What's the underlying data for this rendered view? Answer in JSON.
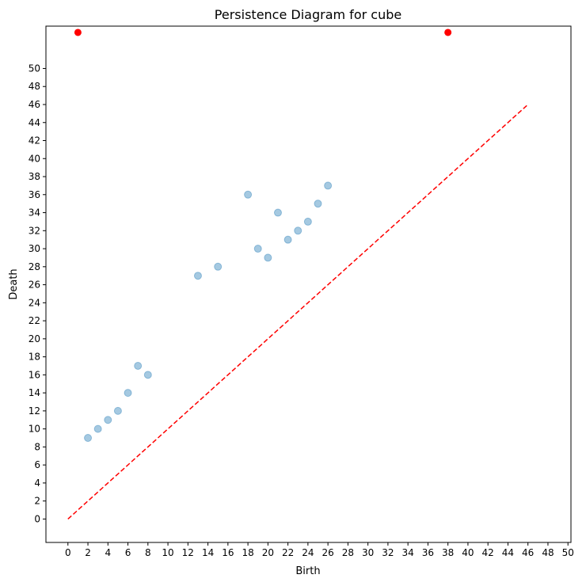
{
  "chart_data": {
    "type": "scatter",
    "title": "Persistence Diagram for cube",
    "xlabel": "Birth",
    "ylabel": "Death",
    "xlim": [
      -2.2,
      50.3
    ],
    "ylim": [
      -2.6,
      54.7
    ],
    "xticks": [
      0,
      2,
      4,
      6,
      8,
      10,
      12,
      14,
      16,
      18,
      20,
      22,
      24,
      26,
      28,
      30,
      32,
      34,
      36,
      38,
      40,
      42,
      44,
      46,
      48,
      50
    ],
    "yticks": [
      0,
      2,
      4,
      6,
      8,
      10,
      12,
      14,
      16,
      18,
      20,
      22,
      24,
      26,
      28,
      30,
      32,
      34,
      36,
      38,
      40,
      42,
      44,
      46,
      48,
      50
    ],
    "grid": false,
    "legend": "none",
    "finite_points": {
      "color": "#1f77b4",
      "alpha": 0.4,
      "x": [
        2,
        3,
        4,
        5,
        6,
        7,
        8,
        13,
        15,
        18,
        19,
        20,
        21,
        22,
        23,
        24,
        25,
        26
      ],
      "y": [
        9,
        10,
        11,
        12,
        14,
        17,
        16,
        27,
        28,
        36,
        30,
        29,
        34,
        31,
        32,
        33,
        35,
        37
      ]
    },
    "infinite_points": {
      "color": "#ff0000",
      "x": [
        1,
        38
      ],
      "y_plotted": 54
    },
    "diagonal": {
      "color": "#ff0000",
      "style": "dashed",
      "x": [
        0,
        46
      ],
      "y": [
        0,
        46
      ]
    }
  }
}
